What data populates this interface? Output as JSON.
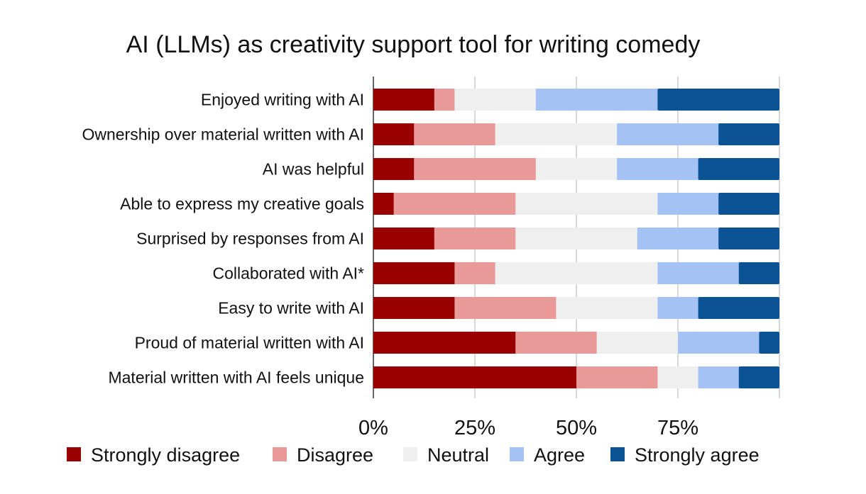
{
  "chart_data": {
    "type": "bar",
    "orientation": "horizontal",
    "stacked": true,
    "title": "AI (LLMs) as creativity support tool for writing comedy",
    "categories": [
      "Enjoyed writing with AI",
      "Ownership over material written with AI",
      "AI was helpful",
      "Able to express my creative goals",
      "Surprised by responses from AI",
      "Collaborated with AI*",
      "Easy to write with AI",
      "Proud of material written with AI",
      "Material written with AI feels unique"
    ],
    "series": [
      {
        "name": "Strongly disagree",
        "color": "#990000",
        "values": [
          15,
          10,
          10,
          5,
          15,
          20,
          20,
          35,
          50
        ]
      },
      {
        "name": "Disagree",
        "color": "#ea9999",
        "values": [
          5,
          20,
          30,
          30,
          20,
          10,
          25,
          20,
          20
        ]
      },
      {
        "name": "Neutral",
        "color": "#efefef",
        "values": [
          20,
          30,
          20,
          35,
          30,
          40,
          25,
          20,
          10
        ]
      },
      {
        "name": "Agree",
        "color": "#a4c2f4",
        "values": [
          30,
          25,
          20,
          15,
          20,
          20,
          10,
          20,
          10
        ]
      },
      {
        "name": "Strongly agree",
        "color": "#0b5394",
        "values": [
          30,
          15,
          20,
          15,
          15,
          10,
          20,
          5,
          10
        ]
      }
    ],
    "xlim": [
      0,
      100
    ],
    "xticks": [
      0,
      25,
      50,
      75
    ],
    "xtick_labels": [
      "0%",
      "25%",
      "50%",
      "75%"
    ],
    "grid": true,
    "legend_position": "bottom"
  }
}
